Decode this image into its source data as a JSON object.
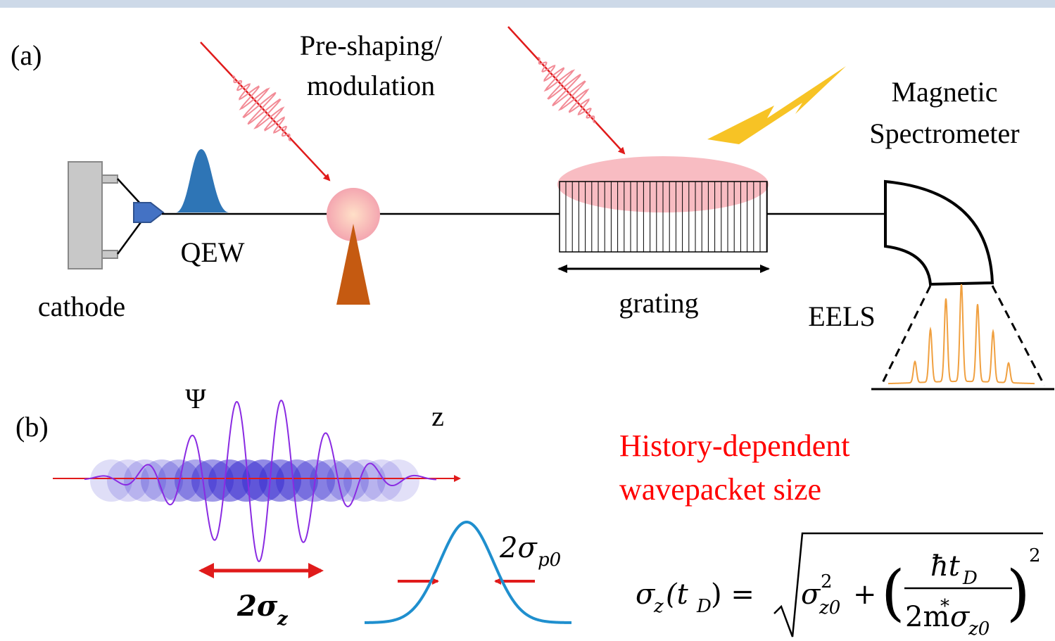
{
  "panel_a": {
    "label": "(a)",
    "preshaping": [
      "Pre-shaping/",
      "modulation"
    ],
    "spectrometer": [
      "Magnetic",
      "Spectrometer"
    ],
    "qew": "QEW",
    "cathode": "cathode",
    "grating": "grating",
    "eels": "EELS"
  },
  "panel_b": {
    "label": "(b)",
    "psi": "Ψ",
    "z": "z",
    "width_z": {
      "base": "2σ",
      "sub": "z"
    },
    "width_p": {
      "base": "2σ",
      "sub": "p0"
    },
    "note": [
      "History-dependent",
      "wavepacket size"
    ],
    "formula": {
      "lhs": "σ",
      "lhs_sub": "z",
      "lhs_arg": "(t",
      "lhs_arg_sub": "D",
      "eq": ") =",
      "term1": "σ",
      "term1_sup": "2",
      "term1_sub": "z0",
      "plus": "+",
      "open": "(",
      "num": "ħt",
      "num_sub": "D",
      "den": "2m",
      "den_sup": "*",
      "den_sigma": "σ",
      "den_sub": "z0",
      "close": ")",
      "outer_sup": "2"
    }
  }
}
